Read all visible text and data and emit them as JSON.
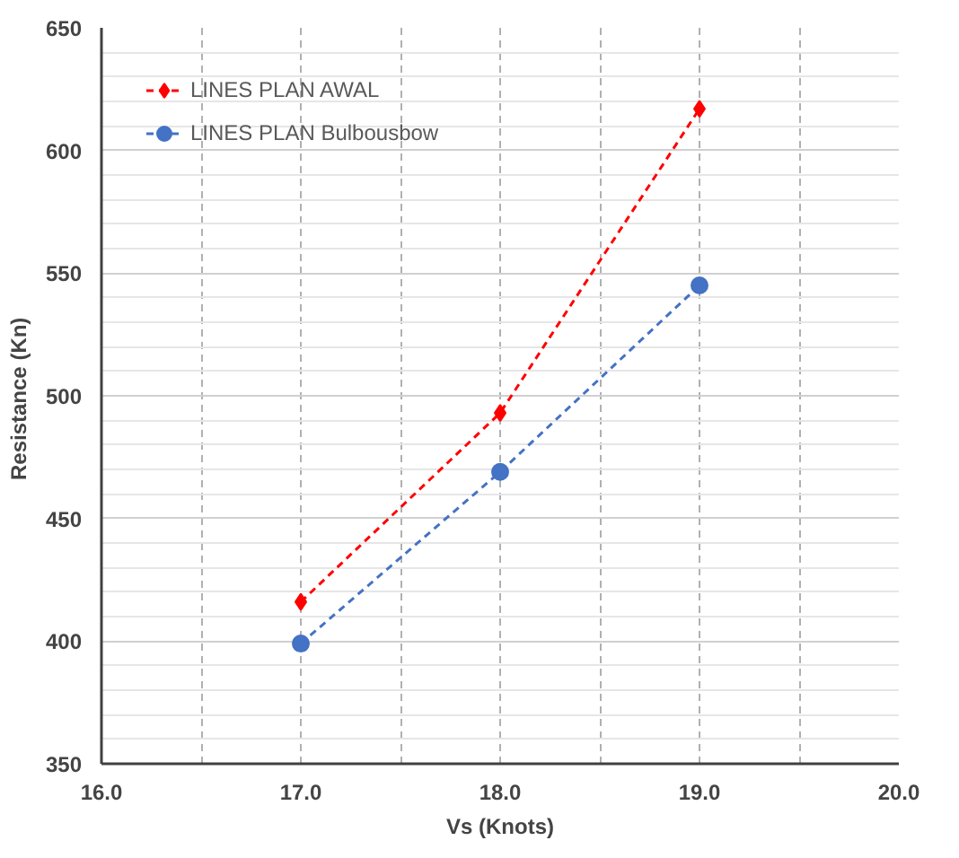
{
  "chart_data": {
    "type": "line",
    "xlabel": "Vs (Knots)",
    "ylabel": "Resistance  (Kn)",
    "x": [
      17,
      18,
      19
    ],
    "series": [
      {
        "name": "LINES PLAN AWAL",
        "color": "#ff0000",
        "values": [
          416,
          493,
          617
        ],
        "marker": "diamond"
      },
      {
        "name": "LINES PLAN Bulbousbow",
        "color": "#4472c4",
        "values": [
          399,
          469,
          545
        ],
        "marker": "circle"
      }
    ],
    "xlim": [
      16,
      20
    ],
    "ylim": [
      350,
      650
    ],
    "xticks": [
      {
        "value": 16,
        "label": "16.0"
      },
      {
        "value": 17,
        "label": "17.0"
      },
      {
        "value": 18,
        "label": "18.0"
      },
      {
        "value": 19,
        "label": "19.0"
      },
      {
        "value": 20,
        "label": "20.0"
      }
    ],
    "yticks": [
      350,
      400,
      450,
      500,
      550,
      600,
      650
    ],
    "grid": true,
    "legend": "top left",
    "line_style": "dashed"
  }
}
